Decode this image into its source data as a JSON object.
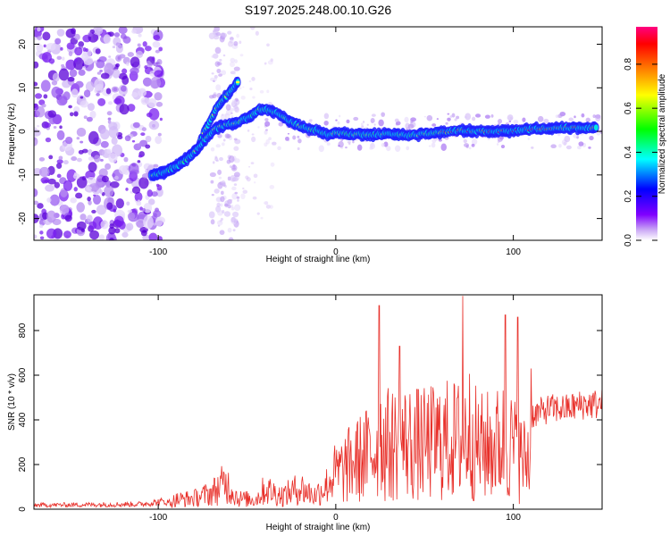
{
  "title": "S197.2025.248.00.10.G26",
  "chart_data": [
    {
      "type": "heatmap",
      "name": "spectrogram",
      "xlabel": "Height of straight line (km)",
      "ylabel": "Frequency (Hz)",
      "xlim": [
        -170,
        150
      ],
      "ylim": [
        -25,
        24
      ],
      "xticks": [
        -100,
        0,
        100
      ],
      "yticks": [
        -20,
        -10,
        0,
        10,
        20
      ],
      "colorbar": {
        "label": "Normalized spectral amplitude",
        "range": [
          0,
          0.97
        ],
        "ticks": [
          0.0,
          0.2,
          0.4,
          0.6,
          0.8
        ],
        "colormap": [
          "#ffffff",
          "#c9a6f5",
          "#8000ff",
          "#0000ff",
          "#00ffff",
          "#00ff00",
          "#ffff00",
          "#ff8000",
          "#ff0000",
          "#ff0080"
        ]
      },
      "tracks": [
        {
          "name": "rising-track",
          "x": [
            -104,
            -96,
            -90,
            -84,
            -78,
            -74,
            -70,
            -66,
            -62,
            -58,
            -55
          ],
          "y": [
            -10,
            -9.5,
            -8,
            -6,
            -4,
            0,
            3,
            6,
            8,
            10,
            11.5
          ]
        },
        {
          "name": "main-track",
          "x": [
            -103,
            -97,
            -92,
            -86,
            -80,
            -74,
            -68,
            -62,
            -56,
            -50,
            -44,
            -40,
            -35,
            -30,
            -25,
            -20,
            -15,
            -10,
            -5,
            0,
            10,
            20,
            30,
            40,
            50,
            60,
            70,
            80,
            90,
            100,
            110,
            120,
            130,
            140,
            147
          ],
          "y": [
            -10,
            -9.5,
            -8.5,
            -7,
            -5,
            -2,
            0.5,
            1.5,
            2,
            3,
            4.8,
            5.2,
            4.5,
            3.5,
            2.2,
            1.2,
            0.6,
            0.2,
            -0.8,
            -0.4,
            -0.6,
            -0.8,
            -0.6,
            -1.0,
            -0.6,
            -0.2,
            0.2,
            0.1,
            0.0,
            0.1,
            0.5,
            0.7,
            0.8,
            0.8,
            0.9
          ]
        }
      ]
    },
    {
      "type": "line",
      "name": "snr",
      "xlabel": "Height of straight line (km)",
      "ylabel": "SNR (10 * v/v)",
      "xlim": [
        -170,
        150
      ],
      "ylim": [
        0,
        960
      ],
      "xticks": [
        -100,
        0,
        100
      ],
      "yticks": [
        0,
        200,
        400,
        600,
        800
      ],
      "color": "#e8302a",
      "envelope_x": [
        -170,
        -110,
        -95,
        -90,
        -80,
        -70,
        -62,
        -55,
        -45,
        -40,
        -30,
        -20,
        -12,
        -5,
        0,
        10,
        20,
        25,
        30,
        40,
        50,
        60,
        70,
        75,
        80,
        90,
        95,
        100,
        105,
        110,
        120,
        130,
        140,
        150
      ],
      "envelope_y": [
        20,
        25,
        40,
        70,
        80,
        120,
        200,
        80,
        70,
        150,
        100,
        160,
        100,
        180,
        280,
        380,
        460,
        560,
        520,
        540,
        520,
        560,
        560,
        640,
        500,
        520,
        560,
        500,
        400,
        420,
        450,
        450,
        470,
        470
      ],
      "peaks": [
        {
          "x": 24.5,
          "y": 912
        },
        {
          "x": 71.5,
          "y": 955
        },
        {
          "x": 95.5,
          "y": 870
        },
        {
          "x": 102.5,
          "y": 860
        },
        {
          "x": 110,
          "y": 630
        },
        {
          "x": 36,
          "y": 730
        }
      ]
    }
  ]
}
